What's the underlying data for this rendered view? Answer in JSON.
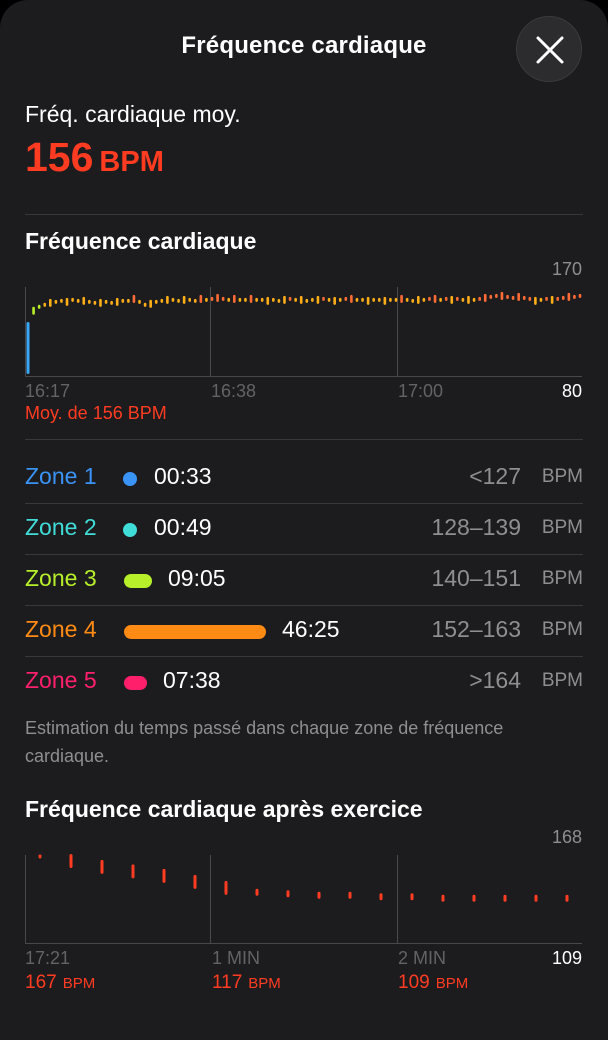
{
  "header": {
    "title": "Fréquence cardiaque",
    "close_icon": "close-icon"
  },
  "average": {
    "label": "Fréq. cardiaque moy.",
    "value": "156",
    "unit": "BPM"
  },
  "hr_chart": {
    "title": "Fréquence cardiaque",
    "y_max_label": "170",
    "y_min_label": "80",
    "x_labels": [
      "16:17",
      "16:38",
      "17:00"
    ],
    "avg_caption": "Moy. de 156 BPM",
    "chart_data": {
      "type": "scatter",
      "ylim": [
        80,
        170
      ],
      "grid": true,
      "y": [
        86,
        146,
        150,
        152,
        154,
        155,
        156,
        155,
        157,
        156,
        156,
        155,
        154,
        154,
        155,
        154,
        155,
        156,
        156,
        158,
        155,
        152,
        153,
        155,
        156,
        157,
        157,
        156,
        157,
        157,
        156,
        158,
        157,
        158,
        159,
        158,
        157,
        158,
        157,
        157,
        158,
        157,
        157,
        156,
        157,
        156,
        157,
        158,
        157,
        157,
        156,
        157,
        157,
        158,
        157,
        156,
        157,
        158,
        158,
        157,
        157,
        156,
        157,
        157,
        156,
        157,
        157,
        158,
        157,
        156,
        157,
        157,
        158,
        158,
        157,
        158,
        157,
        158,
        157,
        157,
        157,
        158,
        159,
        160,
        161,
        161,
        160,
        159,
        160,
        159,
        158,
        156,
        157,
        158,
        157,
        158,
        159,
        160,
        160,
        161
      ]
    }
  },
  "zones": [
    {
      "name": "Zone 1",
      "time": "00:33",
      "range": "<127",
      "unit": "BPM",
      "color": "#3a93f6",
      "fraction": 0.0
    },
    {
      "name": "Zone 2",
      "time": "00:49",
      "range": "128–139",
      "unit": "BPM",
      "color": "#40dcd8",
      "fraction": 0.0
    },
    {
      "name": "Zone 3",
      "time": "09:05",
      "range": "140–151",
      "unit": "BPM",
      "color": "#b7f02a",
      "fraction": 0.196
    },
    {
      "name": "Zone 4",
      "time": "46:25",
      "range": "152–163",
      "unit": "BPM",
      "color": "#ff8a14",
      "fraction": 1.0
    },
    {
      "name": "Zone 5",
      "time": "07:38",
      "range": ">164",
      "unit": "BPM",
      "color": "#ff1f6b",
      "fraction": 0.165
    }
  ],
  "note": "Estimation du temps passé dans chaque zone de fréquence cardiaque.",
  "recovery": {
    "title": "Fréquence cardiaque après exercice",
    "y_max_label": "168",
    "y_min_label": "109",
    "x_labels": [
      "17:21",
      "1  MIN",
      "2  MIN"
    ],
    "values": [
      {
        "n": "167",
        "u": "BPM"
      },
      {
        "n": "117",
        "u": "BPM"
      },
      {
        "n": "109",
        "u": "BPM"
      }
    ],
    "chart_data": {
      "type": "scatter",
      "ylim": [
        109,
        168
      ],
      "y": [
        167,
        164,
        160,
        157,
        154,
        150,
        146,
        143,
        142,
        141,
        141,
        140,
        140,
        139,
        139,
        139,
        139,
        139
      ]
    }
  }
}
